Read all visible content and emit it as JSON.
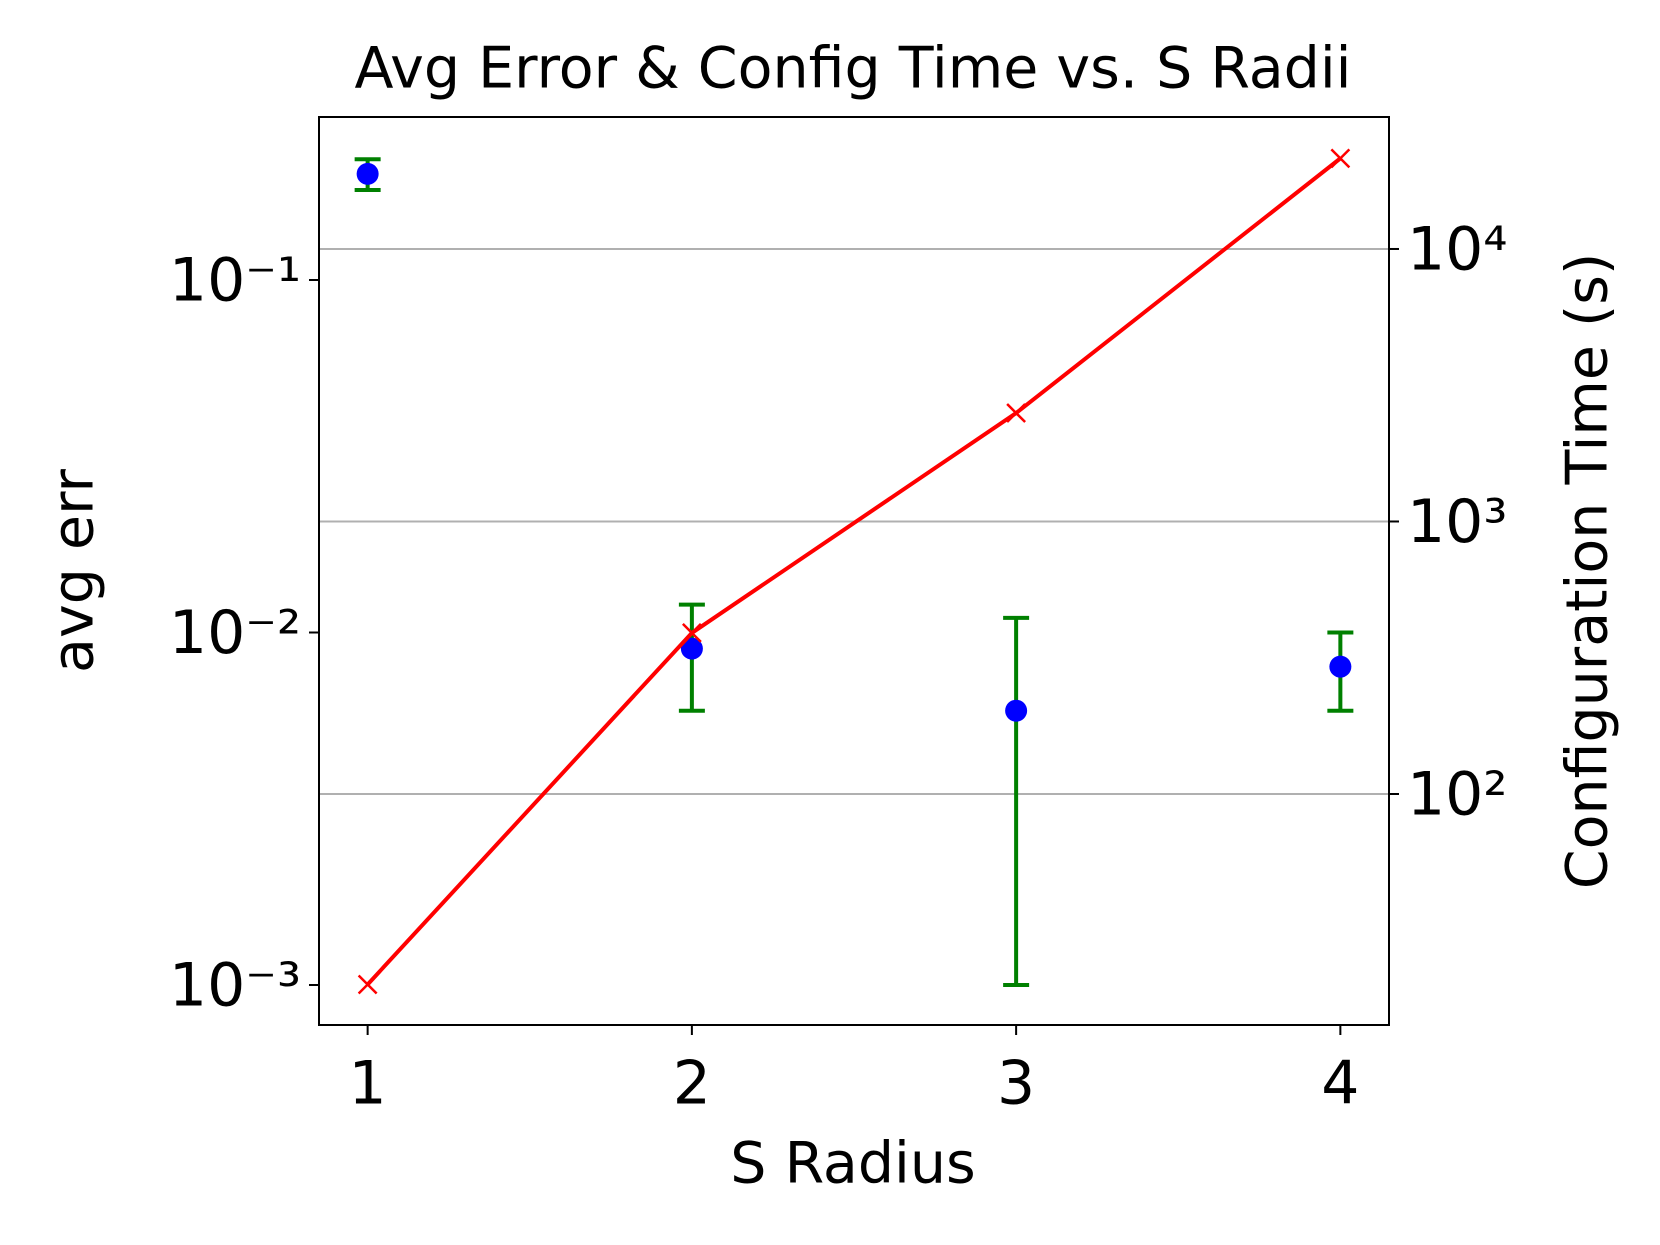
{
  "chart_data": {
    "type": "combo",
    "title": "Avg Error & Config Time vs. S Radii",
    "x_label": "S Radius",
    "y_label": "avg err",
    "y2_label": "Configuration Time (s)",
    "x": [
      1,
      2,
      3,
      4
    ],
    "xlim": [
      0.85,
      4.15
    ],
    "xticks": [
      1,
      2,
      3,
      4
    ],
    "ylim": [
      0.00077,
      0.29
    ],
    "y_scale": "log",
    "yticks": [
      {
        "value": 0.001,
        "label": "10⁻³"
      },
      {
        "value": 0.01,
        "label": "10⁻²"
      },
      {
        "value": 0.1,
        "label": "10⁻¹"
      }
    ],
    "y2lim": [
      14.2,
      30500
    ],
    "y2_scale": "log",
    "y2ticks": [
      {
        "value": 100,
        "label": "10²"
      },
      {
        "value": 1000,
        "label": "10³"
      },
      {
        "value": 10000,
        "label": "10⁴"
      }
    ],
    "grid": "y2",
    "series": [
      {
        "type": "errorbar",
        "color": "#0000ff",
        "error_color": "#008000",
        "values": [
          0.2,
          0.009,
          0.006,
          0.008
        ],
        "errors": [
          0.02,
          0.003,
          0.005,
          0.002
        ]
      },
      {
        "type": "line",
        "axis": "y2",
        "color": "#ff0000",
        "marker": "x",
        "values": [
          20,
          390,
          2500,
          21500
        ]
      }
    ]
  }
}
